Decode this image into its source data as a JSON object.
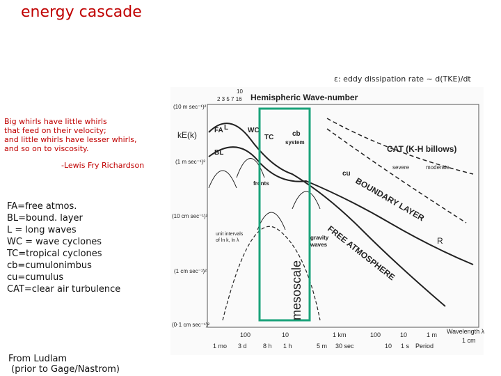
{
  "header": {
    "title": "energy cascade"
  },
  "note": "ε: eddy dissipation rate ~ d(TKE)/dt",
  "quote": {
    "lines": [
      "Big whirls have little whirls",
      "that feed on their velocity;",
      "and little whirls have lesser whirls,",
      "and so on to viscosity.",
      "-Lewis Fry Richardson"
    ]
  },
  "legend": {
    "lines": [
      "FA=free atmos.",
      "BL=bound. layer",
      "L = long waves",
      "WC = wave cyclones",
      "TC=tropical cyclones",
      "cb=cumulonimbus",
      "cu=cumulus",
      "CAT=clear air turbulence"
    ]
  },
  "source": {
    "lines": [
      "From Ludlam",
      " (prior to Gage/Nastrom)"
    ]
  },
  "figure": {
    "title": "Hemispheric Wave-number",
    "wavenumbers": [
      "2 3 5 7 16",
      "10"
    ],
    "y_axis_label": "kE(k)",
    "y_labels": [
      "(10 m sec⁻¹)²",
      "(1 m sec⁻¹)²",
      "(10 cm sec⁻¹)²",
      "(1 cm sec⁻¹)²",
      "(0·1 cm sec⁻¹)²"
    ],
    "wavelength_labels": [
      "100",
      "10",
      "1 km",
      "100",
      "10",
      "1 m",
      "Wavelength λ",
      "1 cm"
    ],
    "period_labels": [
      "1 mo",
      "3 d",
      "8 h",
      "1 h",
      "5 m",
      "30 sec",
      "10",
      "1 s",
      "Period"
    ],
    "curve_labels": [
      "FA",
      "BL",
      "L",
      "WC",
      "TC",
      "cb",
      "system",
      "cu",
      "fronts",
      "gravity",
      "waves",
      "CAT (K-H billows)",
      "severe",
      "moderate",
      "BOUNDARY LAYER",
      "FREE ATMOSPHERE",
      "R",
      "unit intervals",
      "of ln k, ln λ"
    ],
    "highlight_label": "mesoscale"
  }
}
